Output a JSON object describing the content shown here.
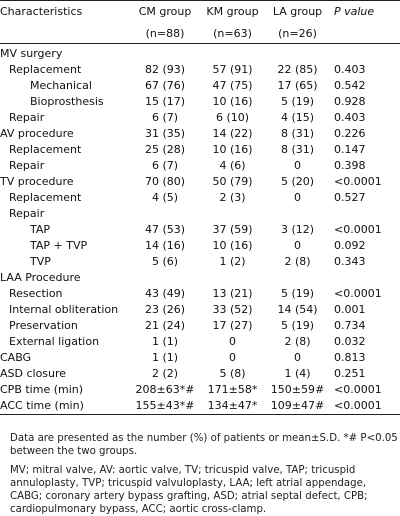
{
  "headers": {
    "characteristics": "Characteristics",
    "cm": "CM group",
    "cm_n": "(n=88)",
    "km": "KM group",
    "km_n": "(n=63)",
    "la": "LA group",
    "la_n": "(n=26)",
    "pvalue": "P value"
  },
  "rows": [
    {
      "label": "MV surgery",
      "indent": 0,
      "cm": "",
      "km": "",
      "la": "",
      "p": ""
    },
    {
      "label": "Replacement",
      "indent": 1,
      "cm": "82 (93)",
      "km": "57 (91)",
      "la": "22 (85)",
      "p": "0.403"
    },
    {
      "label": "Mechanical",
      "indent": 2,
      "cm": "67 (76)",
      "km": "47 (75)",
      "la": "17 (65)",
      "p": "0.542"
    },
    {
      "label": "Bioprosthesis",
      "indent": 2,
      "cm": "15 (17)",
      "km": "10 (16)",
      "la": "5 (19)",
      "p": "0.928"
    },
    {
      "label": "Repair",
      "indent": 1,
      "cm": "6 (7)",
      "km": "6 (10)",
      "la": "4 (15)",
      "p": "0.403"
    },
    {
      "label": "AV procedure",
      "indent": 0,
      "cm": "31 (35)",
      "km": "14 (22)",
      "la": "8 (31)",
      "p": "0.226"
    },
    {
      "label": "Replacement",
      "indent": 1,
      "cm": "25 (28)",
      "km": "10 (16)",
      "la": "8 (31)",
      "p": "0.147"
    },
    {
      "label": "Repair",
      "indent": 1,
      "cm": "6 (7)",
      "km": "4 (6)",
      "la": "0",
      "p": "0.398"
    },
    {
      "label": "TV procedure",
      "indent": 0,
      "cm": "70 (80)",
      "km": "50 (79)",
      "la": "5 (20)",
      "p": "<0.0001"
    },
    {
      "label": "Replacement",
      "indent": 1,
      "cm": "4 (5)",
      "km": "2 (3)",
      "la": "0",
      "p": "0.527"
    },
    {
      "label": "Repair",
      "indent": 1,
      "cm": "",
      "km": "",
      "la": "",
      "p": ""
    },
    {
      "label": "TAP",
      "indent": 2,
      "cm": "47 (53)",
      "km": "37 (59)",
      "la": "3 (12)",
      "p": "<0.0001"
    },
    {
      "label": "TAP + TVP",
      "indent": 2,
      "cm": "14 (16)",
      "km": "10 (16)",
      "la": "0",
      "p": "0.092"
    },
    {
      "label": "TVP",
      "indent": 2,
      "cm": "5 (6)",
      "km": "1 (2)",
      "la": "2 (8)",
      "p": "0.343"
    },
    {
      "label": "LAA Procedure",
      "indent": 0,
      "cm": "",
      "km": "",
      "la": "",
      "p": ""
    },
    {
      "label": "Resection",
      "indent": 1,
      "cm": "43 (49)",
      "km": "13 (21)",
      "la": "5 (19)",
      "p": "<0.0001"
    },
    {
      "label": "Internal obliteration",
      "indent": 1,
      "cm": "23 (26)",
      "km": "33 (52)",
      "la": "14 (54)",
      "p": "0.001"
    },
    {
      "label": "Preservation",
      "indent": 1,
      "cm": "21 (24)",
      "km": "17 (27)",
      "la": "5 (19)",
      "p": "0.734"
    },
    {
      "label": "External ligation",
      "indent": 1,
      "cm": "1 (1)",
      "km": "0",
      "la": "2 (8)",
      "p": "0.032"
    },
    {
      "label": "CABG",
      "indent": 0,
      "cm": "1 (1)",
      "km": "0",
      "la": "0",
      "p": "0.813"
    },
    {
      "label": "ASD closure",
      "indent": 0,
      "cm": "2 (2)",
      "km": "5 (8)",
      "la": "1 (4)",
      "p": "0.251"
    },
    {
      "label": "CPB time (min)",
      "indent": 0,
      "cm": "208±63*#",
      "km": "171±58*",
      "la": "150±59#",
      "p": "<0.0001"
    },
    {
      "label": "ACC time (min)",
      "indent": 0,
      "cm": "155±43*#",
      "km": "134±47*",
      "la": "109±47#",
      "p": "<0.0001"
    }
  ],
  "footnotes": {
    "data_note": "Data are presented as the number (%) of patients or mean±S.D. *# P<0.05 between the two groups.",
    "abbreviations": "MV; mitral valve, AV: aortic valve, TV; tricuspid valve, TAP; tricuspid annuloplasty, TVP; tricuspid valvuloplasty, LAA; left atrial appendage, CABG; coronary artery bypass grafting, ASD; atrial septal defect, CPB; cardiopulmonary bypass, ACC; aortic cross-clamp."
  }
}
